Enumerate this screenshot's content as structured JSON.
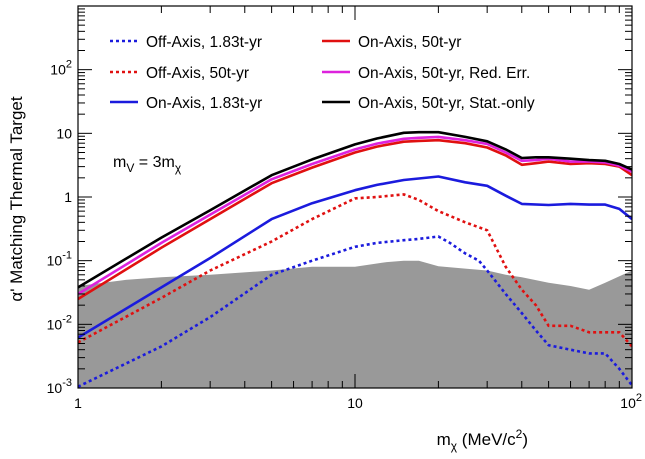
{
  "chart_data": {
    "type": "line",
    "xlabel_main": "m",
    "xlabel_sub": "χ",
    "xlabel_rest": " (MeV/c",
    "xlabel_sup": "2",
    "xlabel_close": ")",
    "ylabel": "α' Matching Thermal Target",
    "x_scale": "log",
    "y_scale": "log",
    "xlim": [
      1,
      100
    ],
    "ylim": [
      0.001,
      1000
    ],
    "x_ticks": [
      {
        "value": 1,
        "base": "1",
        "exp": ""
      },
      {
        "value": 10,
        "base": "10",
        "exp": ""
      },
      {
        "value": 100,
        "base": "10",
        "exp": "2"
      }
    ],
    "y_ticks": [
      {
        "value": 0.001,
        "base": "10",
        "exp": "-3"
      },
      {
        "value": 0.01,
        "base": "10",
        "exp": "-2"
      },
      {
        "value": 0.1,
        "base": "10",
        "exp": "-1"
      },
      {
        "value": 1,
        "base": "1",
        "exp": ""
      },
      {
        "value": 10,
        "base": "10",
        "exp": ""
      },
      {
        "value": 100,
        "base": "10",
        "exp": "2"
      }
    ],
    "annotation": {
      "main": "m",
      "sub1": "V",
      "mid": " = 3m",
      "sub2": "χ"
    },
    "legend": {
      "placement": "top"
    },
    "excluded_region": {
      "color": "#999999",
      "points": [
        [
          1,
          0.04
        ],
        [
          1.5,
          0.05
        ],
        [
          2,
          0.055
        ],
        [
          3,
          0.06
        ],
        [
          5,
          0.07
        ],
        [
          7,
          0.08
        ],
        [
          10,
          0.08
        ],
        [
          13,
          0.095
        ],
        [
          15,
          0.1
        ],
        [
          17,
          0.1
        ],
        [
          20,
          0.082
        ],
        [
          25,
          0.075
        ],
        [
          30,
          0.07
        ],
        [
          35,
          0.06
        ],
        [
          40,
          0.055
        ],
        [
          50,
          0.045
        ],
        [
          60,
          0.04
        ],
        [
          70,
          0.035
        ],
        [
          80,
          0.045
        ],
        [
          100,
          0.07
        ]
      ]
    },
    "series": [
      {
        "name": "Off-Axis, 1.83t-yr",
        "color": "#1b1bdd",
        "dashed": true,
        "x": [
          1,
          2,
          3,
          5,
          7,
          10,
          12,
          15,
          17,
          20,
          22,
          25,
          28,
          30,
          35,
          40,
          45,
          50,
          60,
          70,
          80,
          90,
          100
        ],
        "y": [
          0.00105,
          0.0045,
          0.013,
          0.06,
          0.1,
          0.165,
          0.19,
          0.21,
          0.22,
          0.24,
          0.19,
          0.13,
          0.1,
          0.07,
          0.03,
          0.015,
          0.008,
          0.0047,
          0.004,
          0.0035,
          0.0035,
          0.002,
          0.0011
        ]
      },
      {
        "name": "Off-Axis, 50t-yr",
        "color": "#e01010",
        "dashed": true,
        "x": [
          1,
          2,
          3,
          5,
          7,
          10,
          12,
          15,
          17,
          20,
          25,
          30,
          35,
          40,
          45,
          50,
          60,
          70,
          80,
          90,
          100
        ],
        "y": [
          0.0052,
          0.026,
          0.07,
          0.2,
          0.45,
          0.95,
          1.0,
          1.1,
          0.9,
          0.6,
          0.4,
          0.3,
          0.08,
          0.035,
          0.02,
          0.0095,
          0.0095,
          0.0075,
          0.0075,
          0.0075,
          0.0045
        ]
      },
      {
        "name": "On-Axis, 1.83t-yr",
        "color": "#1b1bdd",
        "dashed": false,
        "x": [
          1,
          2,
          3,
          5,
          7,
          10,
          12,
          15,
          17,
          20,
          25,
          30,
          35,
          40,
          50,
          60,
          70,
          80,
          90,
          100
        ],
        "y": [
          0.0062,
          0.038,
          0.11,
          0.45,
          0.8,
          1.28,
          1.55,
          1.85,
          1.95,
          2.1,
          1.7,
          1.5,
          1.05,
          0.78,
          0.75,
          0.78,
          0.76,
          0.76,
          0.65,
          0.45
        ]
      },
      {
        "name": "On-Axis, 50t-yr",
        "color": "#e01010",
        "dashed": false,
        "x": [
          1,
          2,
          3,
          5,
          7,
          10,
          12,
          15,
          17,
          20,
          25,
          30,
          35,
          40,
          45,
          50,
          60,
          70,
          80,
          90,
          100
        ],
        "y": [
          0.025,
          0.16,
          0.45,
          1.65,
          2.9,
          5.0,
          6.2,
          7.4,
          7.6,
          7.8,
          7.0,
          6.0,
          4.5,
          3.2,
          3.4,
          3.6,
          3.3,
          3.4,
          3.3,
          3.0,
          2.2
        ]
      },
      {
        "name": "On-Axis, 50t-yr, Red. Err.",
        "color": "#dd22dd",
        "dashed": false,
        "x": [
          1,
          2,
          3,
          5,
          7,
          10,
          12,
          15,
          17,
          20,
          25,
          30,
          35,
          40,
          45,
          50,
          60,
          70,
          80,
          90,
          100
        ],
        "y": [
          0.03,
          0.19,
          0.53,
          1.9,
          3.3,
          5.6,
          6.9,
          8.2,
          8.5,
          8.8,
          7.8,
          6.8,
          5.0,
          3.7,
          3.8,
          4.0,
          3.6,
          3.6,
          3.5,
          3.1,
          2.5
        ]
      },
      {
        "name": "On-Axis, 50t-yr, Stat.-only",
        "color": "#000000",
        "dashed": false,
        "x": [
          1,
          2,
          3,
          5,
          7,
          10,
          12,
          15,
          17,
          20,
          25,
          30,
          35,
          40,
          45,
          50,
          60,
          70,
          80,
          90,
          100
        ],
        "y": [
          0.038,
          0.23,
          0.62,
          2.2,
          3.9,
          6.7,
          8.3,
          10.2,
          10.4,
          10.4,
          8.8,
          7.5,
          5.6,
          4.1,
          4.2,
          4.2,
          4.0,
          3.8,
          3.7,
          3.3,
          2.7
        ]
      }
    ]
  }
}
